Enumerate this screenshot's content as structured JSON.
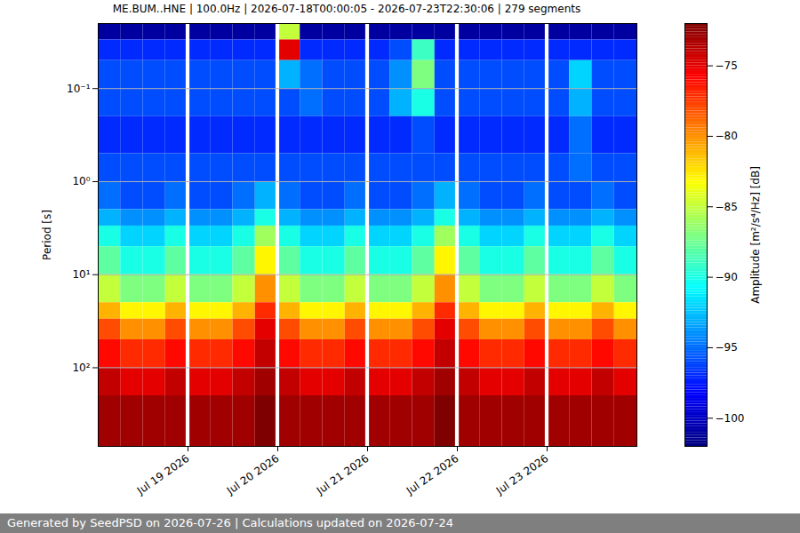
{
  "chart_data": {
    "type": "heatmap",
    "title": "ME.BUM..HNE | 100.0Hz | 2026-07-18T00:00:05 - 2026-07-23T22:30:06 | 279 segments",
    "ylabel": "Period [s]",
    "colorbar_label": "Amplitude [m²/s⁴/Hz] [dB]",
    "footer": "Generated by SeedPSD on 2026-07-26 | Calculations updated on 2026-07-24",
    "x_bins": [
      "2026-07-18T00:00",
      "2026-07-18T06:00",
      "2026-07-18T12:00",
      "2026-07-18T18:00",
      "2026-07-18T23:30",
      "2026-07-19T00:30",
      "2026-07-19T06:00",
      "2026-07-19T12:00",
      "2026-07-19T18:00",
      "2026-07-19T23:30",
      "2026-07-20T00:30",
      "2026-07-20T06:00",
      "2026-07-20T12:00",
      "2026-07-20T18:00",
      "2026-07-20T23:30",
      "2026-07-21T00:30",
      "2026-07-21T06:00",
      "2026-07-21T12:00",
      "2026-07-21T18:00",
      "2026-07-21T23:30",
      "2026-07-22T00:30",
      "2026-07-22T06:00",
      "2026-07-22T12:00",
      "2026-07-22T18:00",
      "2026-07-22T23:30",
      "2026-07-23T00:30",
      "2026-07-23T06:00",
      "2026-07-23T12:00",
      "2026-07-23T18:00",
      "2026-07-24T00:00"
    ],
    "period_bins": [
      0.02,
      0.03,
      0.05,
      0.1,
      0.2,
      0.5,
      1,
      2,
      3,
      5,
      10,
      20,
      30,
      50,
      100,
      200,
      700
    ],
    "cells": [
      [
        -101,
        -101,
        -101,
        -101,
        null,
        -101,
        -101,
        -101,
        -101,
        null,
        -85,
        -101,
        -101,
        -101,
        null,
        -101,
        -101,
        -101,
        -101,
        null,
        -101,
        -101,
        -101,
        -101,
        null,
        -101,
        -101,
        -101,
        -101
      ],
      [
        -97,
        -97,
        -97,
        -97,
        null,
        -97,
        -97,
        -97,
        -97,
        null,
        -75,
        -97,
        -97,
        -97,
        null,
        -97,
        -96,
        -89,
        -97,
        null,
        -97,
        -97,
        -97,
        -97,
        null,
        -97,
        -97,
        -97,
        -97
      ],
      [
        -96,
        -96,
        -96,
        -96,
        null,
        -96,
        -96,
        -96,
        -96,
        null,
        -93,
        -95,
        -96,
        -96,
        null,
        -96,
        -94,
        -87,
        -96,
        null,
        -96,
        -96,
        -96,
        -96,
        null,
        -96,
        -92,
        -96,
        -96
      ],
      [
        -96,
        -96,
        -96,
        -96,
        null,
        -96,
        -96,
        -96,
        -96,
        null,
        -96,
        -95,
        -96,
        -96,
        null,
        -96,
        -93,
        -90,
        -96,
        null,
        -96,
        -96,
        -96,
        -96,
        null,
        -96,
        -93,
        -96,
        -96
      ],
      [
        -97,
        -97,
        -97,
        -97,
        null,
        -97,
        -97,
        -97,
        -97,
        null,
        -97,
        -97,
        -97,
        -97,
        null,
        -97,
        -97,
        -96,
        -97,
        null,
        -97,
        -97,
        -97,
        -97,
        null,
        -97,
        -95,
        -97,
        -97
      ],
      [
        -96,
        -96,
        -96,
        -96,
        null,
        -96,
        -96,
        -96,
        -96,
        null,
        -96,
        -96,
        -96,
        -96,
        null,
        -96,
        -96,
        -96,
        -96,
        null,
        -96,
        -96,
        -96,
        -96,
        null,
        -96,
        -95,
        -96,
        -96
      ],
      [
        -95,
        -96,
        -96,
        -95,
        null,
        -96,
        -96,
        -95,
        -93,
        null,
        -95,
        -96,
        -96,
        -95,
        null,
        -96,
        -96,
        -95,
        -93,
        null,
        -95,
        -96,
        -96,
        -95,
        null,
        -96,
        -96,
        -95,
        -96
      ],
      [
        -93,
        -94,
        -94,
        -93,
        null,
        -94,
        -94,
        -93,
        -90,
        null,
        -93,
        -94,
        -94,
        -93,
        null,
        -94,
        -94,
        -93,
        -90,
        null,
        -93,
        -94,
        -94,
        -93,
        null,
        -94,
        -94,
        -93,
        -94
      ],
      [
        -90,
        -92,
        -92,
        -90,
        null,
        -92,
        -92,
        -90,
        -86,
        null,
        -90,
        -92,
        -92,
        -90,
        null,
        -92,
        -92,
        -90,
        -86,
        null,
        -90,
        -92,
        -92,
        -90,
        null,
        -92,
        -92,
        -90,
        -92
      ],
      [
        -88,
        -90,
        -90,
        -88,
        null,
        -90,
        -90,
        -88,
        -83,
        null,
        -88,
        -90,
        -90,
        -88,
        null,
        -90,
        -90,
        -88,
        -83,
        null,
        -88,
        -90,
        -90,
        -88,
        null,
        -90,
        -90,
        -88,
        -90
      ],
      [
        -85,
        -87,
        -87,
        -85,
        null,
        -87,
        -87,
        -85,
        -80,
        null,
        -85,
        -87,
        -87,
        -85,
        null,
        -87,
        -87,
        -85,
        -80,
        null,
        -85,
        -87,
        -87,
        -85,
        null,
        -87,
        -87,
        -85,
        -87
      ],
      [
        -81,
        -83,
        -83,
        -81,
        null,
        -83,
        -83,
        -81,
        -77,
        null,
        -81,
        -83,
        -83,
        -81,
        null,
        -83,
        -83,
        -81,
        -77,
        null,
        -81,
        -83,
        -83,
        -81,
        null,
        -83,
        -83,
        -81,
        -83
      ],
      [
        -78,
        -80,
        -80,
        -78,
        null,
        -80,
        -80,
        -78,
        -75,
        null,
        -78,
        -80,
        -80,
        -78,
        null,
        -80,
        -80,
        -78,
        -75,
        null,
        -78,
        -80,
        -80,
        -78,
        null,
        -80,
        -80,
        -78,
        -80
      ],
      [
        -76,
        -77,
        -77,
        -76,
        null,
        -77,
        -77,
        -76,
        -74,
        null,
        -76,
        -77,
        -77,
        -76,
        null,
        -77,
        -77,
        -76,
        -74,
        null,
        -76,
        -77,
        -77,
        -76,
        null,
        -77,
        -77,
        -76,
        -77
      ],
      [
        -74,
        -75,
        -75,
        -74,
        null,
        -75,
        -75,
        -74,
        -73,
        null,
        -74,
        -75,
        -75,
        -74,
        null,
        -75,
        -75,
        -74,
        -73,
        null,
        -74,
        -75,
        -75,
        -74,
        null,
        -75,
        -75,
        -74,
        -75
      ],
      [
        -73,
        -73,
        -73,
        -73,
        null,
        -73,
        -73,
        -73,
        -72,
        null,
        -73,
        -73,
        -73,
        -73,
        null,
        -73,
        -73,
        -73,
        -72,
        null,
        -73,
        -73,
        -73,
        -73,
        null,
        -73,
        -73,
        -73,
        -73
      ]
    ],
    "xlim": [
      "2026-07-18T00:00",
      "2026-07-24T00:00"
    ],
    "xticks": [
      {
        "value": "2026-07-19T00:00",
        "label": "Jul 19 2026"
      },
      {
        "value": "2026-07-20T00:00",
        "label": "Jul 20 2026"
      },
      {
        "value": "2026-07-21T00:00",
        "label": "Jul 21 2026"
      },
      {
        "value": "2026-07-22T00:00",
        "label": "Jul 22 2026"
      },
      {
        "value": "2026-07-23T00:00",
        "label": "Jul 23 2026"
      }
    ],
    "ylim": [
      0.02,
      700
    ],
    "yticks": [
      {
        "value": 0.1,
        "label": "10⁻¹"
      },
      {
        "value": 1,
        "label": "10⁰"
      },
      {
        "value": 10,
        "label": "10¹"
      },
      {
        "value": 100,
        "label": "10²"
      }
    ],
    "log": "y",
    "grid": "y",
    "clim": [
      -102,
      -72
    ],
    "cticks": [
      -100,
      -95,
      -90,
      -85,
      -80,
      -75
    ]
  }
}
